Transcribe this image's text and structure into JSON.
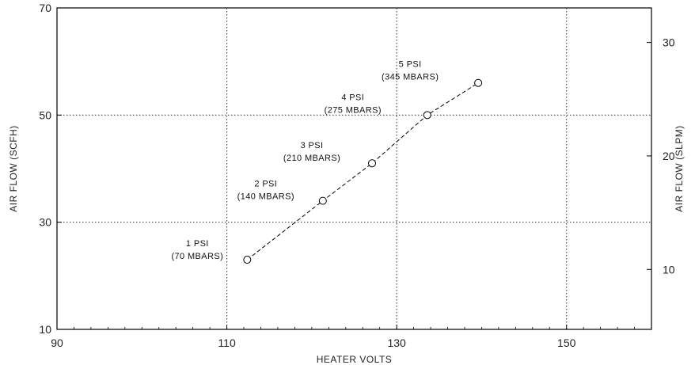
{
  "chart_data": {
    "type": "line",
    "title": "",
    "xlabel": "HEATER VOLTS",
    "ylabel": "AIR FLOW (SCFH)",
    "ylabel_right": "AIR FLOW (SLPM)",
    "xlim": [
      90,
      160
    ],
    "ylim": [
      10,
      70
    ],
    "ylim_right": [
      4.72,
      33.04
    ],
    "x_ticks": [
      90,
      110,
      130,
      150
    ],
    "y_ticks": [
      10,
      30,
      50,
      70
    ],
    "y_ticks_right": [
      10,
      20,
      30
    ],
    "grid": true,
    "series": [
      {
        "x": [
          112.4,
          121.3,
          127.1,
          133.6,
          139.6
        ],
        "y": [
          23,
          34,
          41,
          50,
          56
        ],
        "labels": [
          [
            "1 PSI",
            "(70 MBARS)"
          ],
          [
            "2 PSI",
            "(140 MBARS)"
          ],
          [
            "3 PSI",
            "(210 MBARS)"
          ],
          [
            "4 PSI",
            "(275 MBARS)"
          ],
          [
            "5 PSI",
            "(345 MBARS)"
          ]
        ]
      }
    ]
  }
}
